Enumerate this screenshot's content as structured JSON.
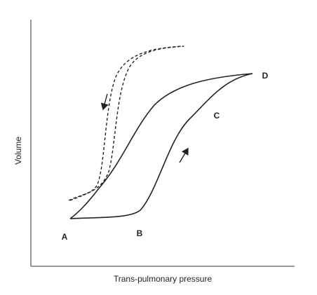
{
  "axes": {
    "y_label": "Volume",
    "x_label": "Trans-pulmonary pressure"
  },
  "points": [
    {
      "label": "A"
    },
    {
      "label": "B"
    },
    {
      "label": "C"
    },
    {
      "label": "D"
    }
  ]
}
